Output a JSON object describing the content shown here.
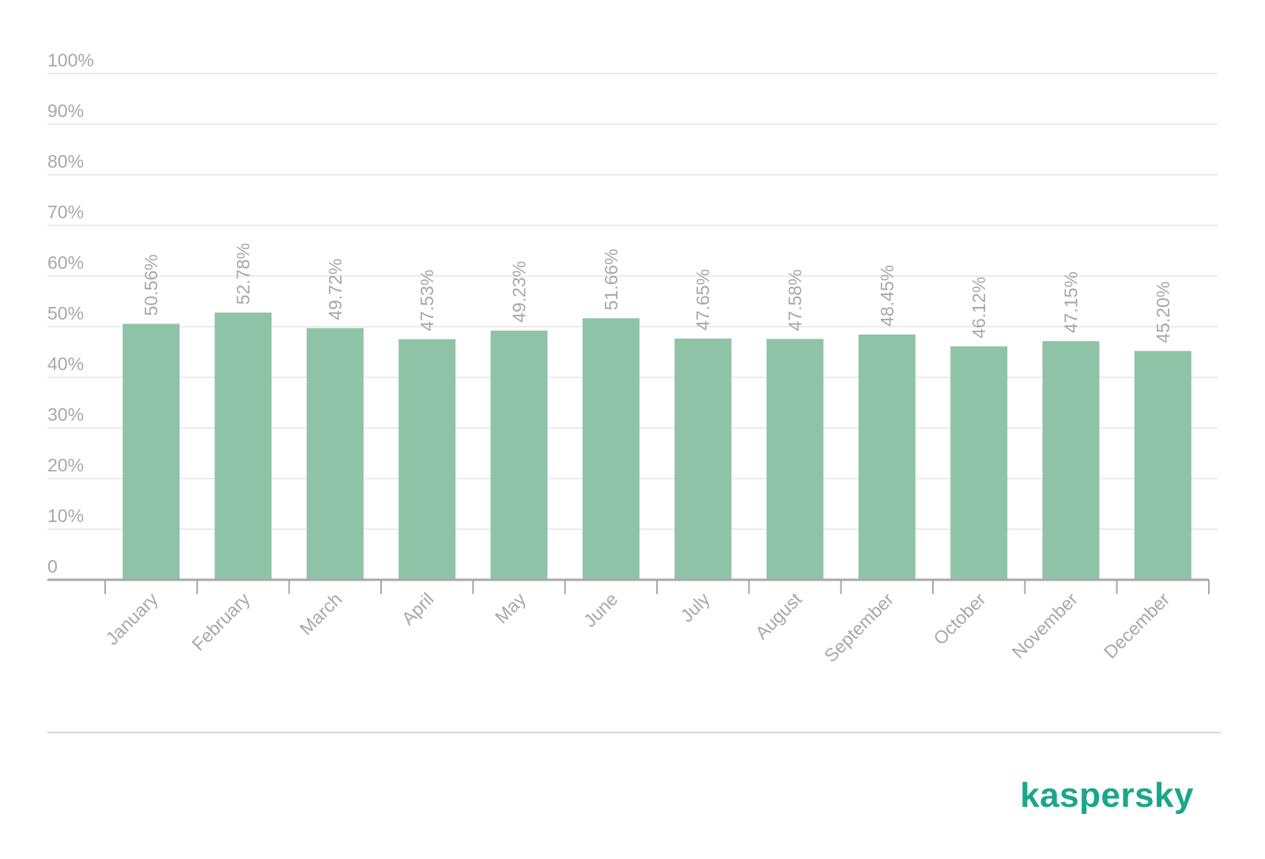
{
  "chart_data": {
    "type": "bar",
    "categories": [
      "January",
      "February",
      "March",
      "April",
      "May",
      "June",
      "July",
      "August",
      "September",
      "October",
      "November",
      "December"
    ],
    "values": [
      50.56,
      52.78,
      49.72,
      47.53,
      49.23,
      51.66,
      47.65,
      47.58,
      48.45,
      46.12,
      47.15,
      45.2
    ],
    "value_labels": [
      "50.56%",
      "52.78%",
      "49.72%",
      "47.53%",
      "49.23%",
      "51.66%",
      "47.65%",
      "47.58%",
      "48.45%",
      "46.12%",
      "47.15%",
      "45.20%"
    ],
    "yticks": [
      0,
      10,
      20,
      30,
      40,
      50,
      60,
      70,
      80,
      90,
      100
    ],
    "ytick_labels": [
      "0",
      "10%",
      "20%",
      "30%",
      "40%",
      "50%",
      "60%",
      "70%",
      "80%",
      "90%",
      "100%"
    ],
    "ylim": [
      0,
      100
    ],
    "title": "",
    "xlabel": "",
    "ylabel": "",
    "grid": true,
    "legend": "none",
    "bar_color": "#8fc3a7",
    "grid_color": "#e6e6e6",
    "axis_color": "#a8a8a8",
    "text_color": "#a8a8a8"
  },
  "logo": {
    "text": "kaspersky",
    "color": "#1aa68a"
  }
}
